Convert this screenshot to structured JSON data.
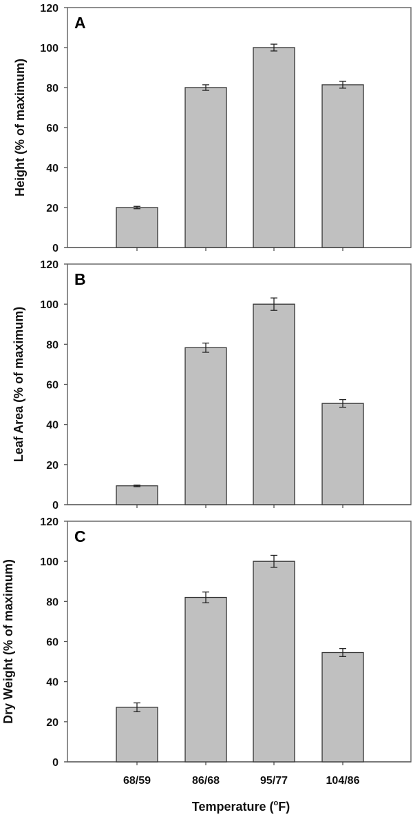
{
  "chart_data": {
    "type": "bar",
    "categories": [
      "68/59",
      "86/68",
      "95/77",
      "104/86"
    ],
    "xlabel": "Temperature (°F)",
    "xlabel_parts": {
      "pre": "Temperature (",
      "sup": "o",
      "post": "F)"
    },
    "panels": [
      {
        "letter": "A",
        "ylabel": "Height (% of maximum)",
        "ylim": [
          0,
          120
        ],
        "yticks": [
          0,
          20,
          40,
          60,
          80,
          100,
          120
        ],
        "values": [
          20,
          80,
          100,
          81.4
        ],
        "errors": [
          0.6,
          1.4,
          1.7,
          1.7
        ]
      },
      {
        "letter": "B",
        "ylabel": "Leaf Area (% of maximum)",
        "ylim": [
          0,
          120
        ],
        "yticks": [
          0,
          20,
          40,
          60,
          80,
          100,
          120
        ],
        "values": [
          9.4,
          78.3,
          100,
          50.5
        ],
        "errors": [
          0.4,
          2.3,
          3.1,
          1.9
        ]
      },
      {
        "letter": "C",
        "ylabel": "Dry Weight (% of maximum)",
        "ylim": [
          0,
          120
        ],
        "yticks": [
          0,
          20,
          40,
          60,
          80,
          100,
          120
        ],
        "values": [
          27.2,
          82.0,
          100,
          54.5
        ],
        "errors": [
          2.2,
          2.7,
          3.0,
          2.0
        ]
      }
    ],
    "grid": false,
    "legend": "none",
    "colors": {
      "bar_fill": "#c0c0c0",
      "bar_stroke": "#333333",
      "frame": "#6a6a6a"
    }
  }
}
